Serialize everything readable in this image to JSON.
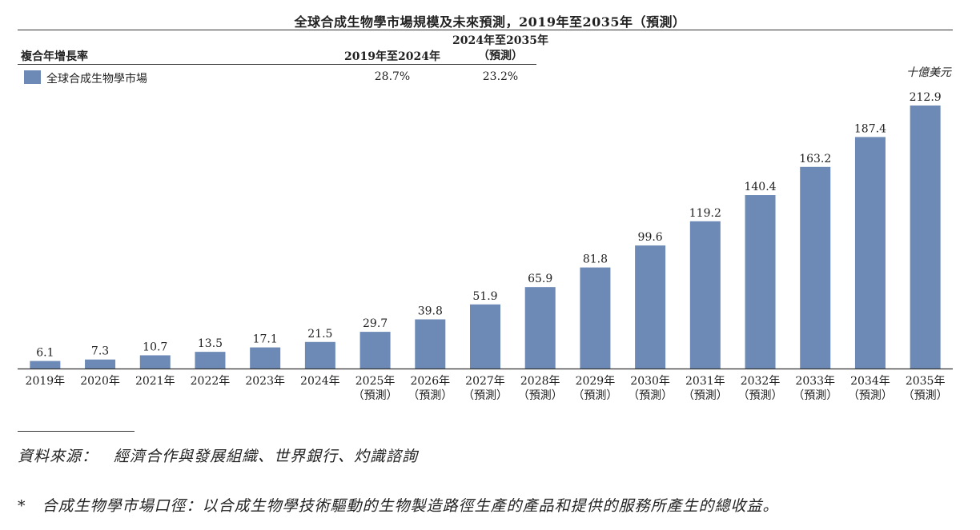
{
  "chart_data": {
    "type": "bar",
    "title": "全球合成生物學市場規模及未來預測，2019年至2035年（預測）",
    "unit": "十億美元",
    "categories": [
      [
        "2019年"
      ],
      [
        "2020年"
      ],
      [
        "2021年"
      ],
      [
        "2022年"
      ],
      [
        "2023年"
      ],
      [
        "2024年"
      ],
      [
        "2025年",
        "（預測）"
      ],
      [
        "2026年",
        "（預測）"
      ],
      [
        "2027年",
        "（預測）"
      ],
      [
        "2028年",
        "（預測）"
      ],
      [
        "2029年",
        "（預測）"
      ],
      [
        "2030年",
        "（預測）"
      ],
      [
        "2031年",
        "（預測）"
      ],
      [
        "2032年",
        "（預測）"
      ],
      [
        "2033年",
        "（預測）"
      ],
      [
        "2034年",
        "（預測）"
      ],
      [
        "2035年",
        "（預測）"
      ]
    ],
    "series": [
      {
        "name": "全球合成生物學市場",
        "color": "#6c8ab5",
        "values": [
          6.1,
          7.3,
          10.7,
          13.5,
          17.1,
          21.5,
          29.7,
          39.8,
          51.9,
          65.9,
          81.8,
          99.6,
          119.2,
          140.4,
          163.2,
          187.4,
          212.9
        ],
        "labels": [
          "6.1",
          "7.3",
          "10.7",
          "13.5",
          "17.1",
          "21.5",
          "29.7",
          "39.8",
          "51.9",
          "65.9",
          "81.8",
          "99.6",
          "119.2",
          "140.4",
          "163.2",
          "187.4",
          "212.9"
        ]
      }
    ],
    "ylim": [
      0,
      212.9
    ],
    "grid": false,
    "legend": "top-left"
  },
  "cagr": {
    "heading": "複合年增長率",
    "period1": "2019年至2024年",
    "period2_line1": "2024年至2035年",
    "period2_line2": "（預測）",
    "value1": "28.7%",
    "value2": "23.2%"
  },
  "footer": {
    "source": "資料來源：　經濟合作與發展組織、世界銀行、灼識諮詢",
    "note": "*　合成生物學市場口徑：以合成生物學技術驅動的生物製造路徑生產的產品和提供的服務所產生的總收益。"
  }
}
